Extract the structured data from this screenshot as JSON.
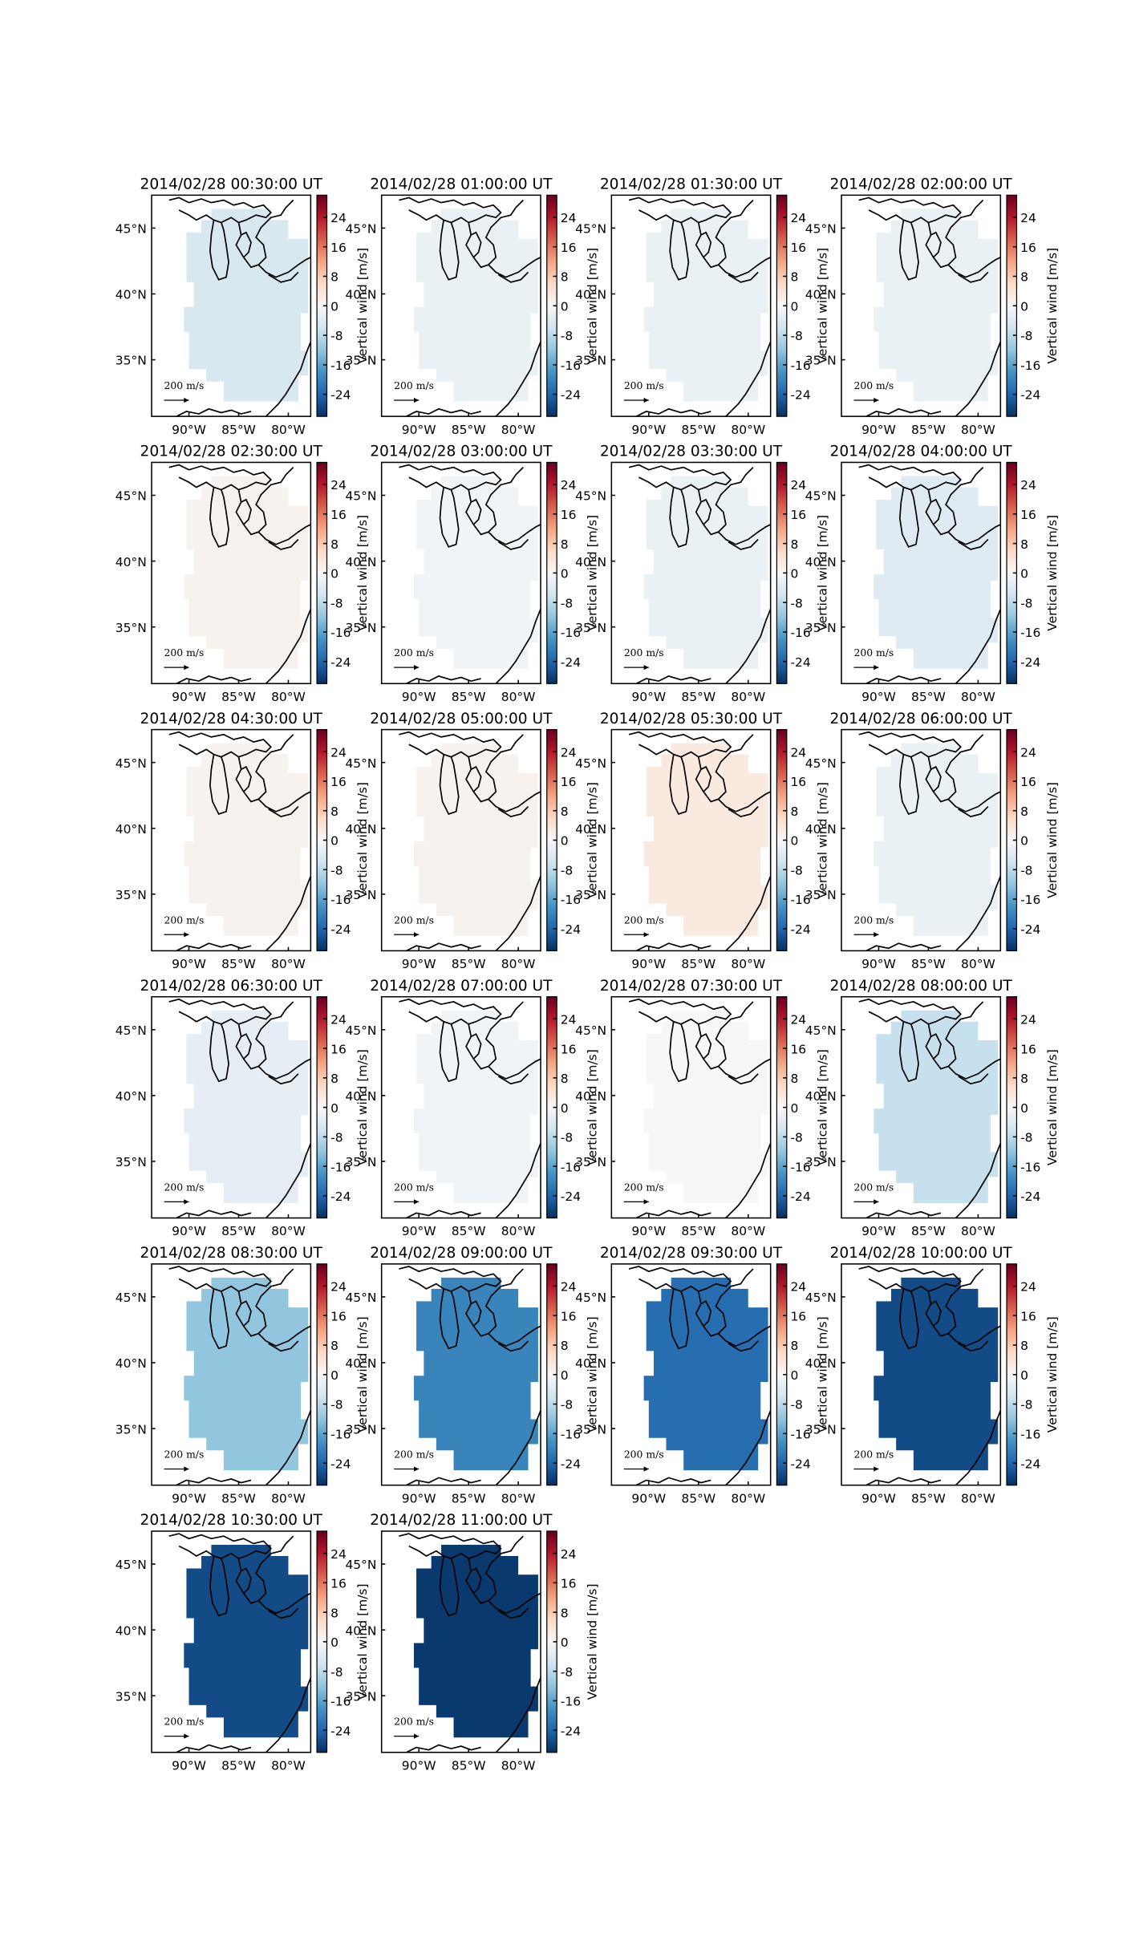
{
  "axes": {
    "xlim": [
      -93.75,
      -77.75
    ],
    "ylim": [
      30.7,
      47.5
    ],
    "xticks": [
      {
        "value": -90,
        "label": "90°W"
      },
      {
        "value": -85,
        "label": "85°W"
      },
      {
        "value": -80,
        "label": "80°W"
      }
    ],
    "yticks": [
      {
        "value": 35,
        "label": "35°N"
      },
      {
        "value": 40,
        "label": "40°N"
      },
      {
        "value": 45,
        "label": "45°N"
      }
    ],
    "reference_arrow_label": "200 m/s",
    "colorbar": {
      "label": "Vertical wind [m/s]",
      "clim": [
        -30,
        30
      ],
      "ticks": [
        -24,
        -16,
        -8,
        0,
        8,
        16,
        24
      ],
      "colormap": [
        "#053061",
        "#2166ac",
        "#4393c3",
        "#92c5de",
        "#d1e5f0",
        "#f7f7f7",
        "#fddbc7",
        "#f4a582",
        "#d6604d",
        "#b2182b",
        "#67001f"
      ]
    }
  },
  "chart_data": [
    {
      "type": "map",
      "title": "2014/02/28 00:30:00 UT",
      "value": -5
    },
    {
      "type": "map",
      "title": "2014/02/28 01:00:00 UT",
      "value": -2
    },
    {
      "type": "map",
      "title": "2014/02/28 01:30:00 UT",
      "value": -2
    },
    {
      "type": "map",
      "title": "2014/02/28 02:00:00 UT",
      "value": -2
    },
    {
      "type": "map",
      "title": "2014/02/28 02:30:00 UT",
      "value": 1
    },
    {
      "type": "map",
      "title": "2014/02/28 03:00:00 UT",
      "value": -1
    },
    {
      "type": "map",
      "title": "2014/02/28 03:30:00 UT",
      "value": -2
    },
    {
      "type": "map",
      "title": "2014/02/28 04:00:00 UT",
      "value": -4
    },
    {
      "type": "map",
      "title": "2014/02/28 04:30:00 UT",
      "value": 1
    },
    {
      "type": "map",
      "title": "2014/02/28 05:00:00 UT",
      "value": 1
    },
    {
      "type": "map",
      "title": "2014/02/28 05:30:00 UT",
      "value": 3
    },
    {
      "type": "map",
      "title": "2014/02/28 06:00:00 UT",
      "value": -2
    },
    {
      "type": "map",
      "title": "2014/02/28 06:30:00 UT",
      "value": -3
    },
    {
      "type": "map",
      "title": "2014/02/28 07:00:00 UT",
      "value": -1
    },
    {
      "type": "map",
      "title": "2014/02/28 07:30:00 UT",
      "value": 0
    },
    {
      "type": "map",
      "title": "2014/02/28 08:00:00 UT",
      "value": -7
    },
    {
      "type": "map",
      "title": "2014/02/28 08:30:00 UT",
      "value": -12
    },
    {
      "type": "map",
      "title": "2014/02/28 09:00:00 UT",
      "value": -20
    },
    {
      "type": "map",
      "title": "2014/02/28 09:30:00 UT",
      "value": -23
    },
    {
      "type": "map",
      "title": "2014/02/28 10:00:00 UT",
      "value": -27
    },
    {
      "type": "map",
      "title": "2014/02/28 10:30:00 UT",
      "value": -27
    },
    {
      "type": "map",
      "title": "2014/02/28 11:00:00 UT",
      "value": -29
    }
  ]
}
